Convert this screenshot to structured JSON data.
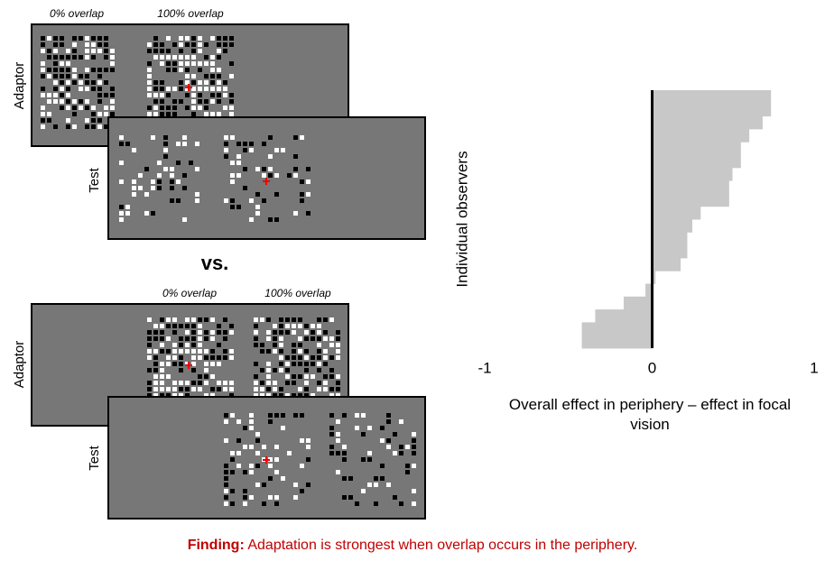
{
  "panels": {
    "top": {
      "labels": [
        "0% overlap",
        "100% overlap"
      ],
      "adaptor": "Adaptor",
      "test": "Test"
    },
    "versus": "vs.",
    "bottom": {
      "labels": [
        "0% overlap",
        "100% overlap"
      ],
      "adaptor": "Adaptor",
      "test": "Test"
    }
  },
  "chart_data": {
    "type": "hbar",
    "y_label": "Individual observers",
    "x_label": "Overall effect in periphery – effect in focal vision",
    "values": [
      0.71,
      0.71,
      0.66,
      0.58,
      0.53,
      0.53,
      0.48,
      0.46,
      0.46,
      0.29,
      0.24,
      0.21,
      0.21,
      0.17,
      0.02,
      -0.04,
      -0.17,
      -0.34,
      -0.42,
      -0.42
    ],
    "color": "#c8c8c8",
    "xlim": [
      -1,
      1
    ],
    "xticks": [
      -1,
      0,
      1
    ]
  },
  "finding": {
    "label": "Finding:",
    "text": "Adaptation is strongest when overlap occurs in the periphery."
  }
}
